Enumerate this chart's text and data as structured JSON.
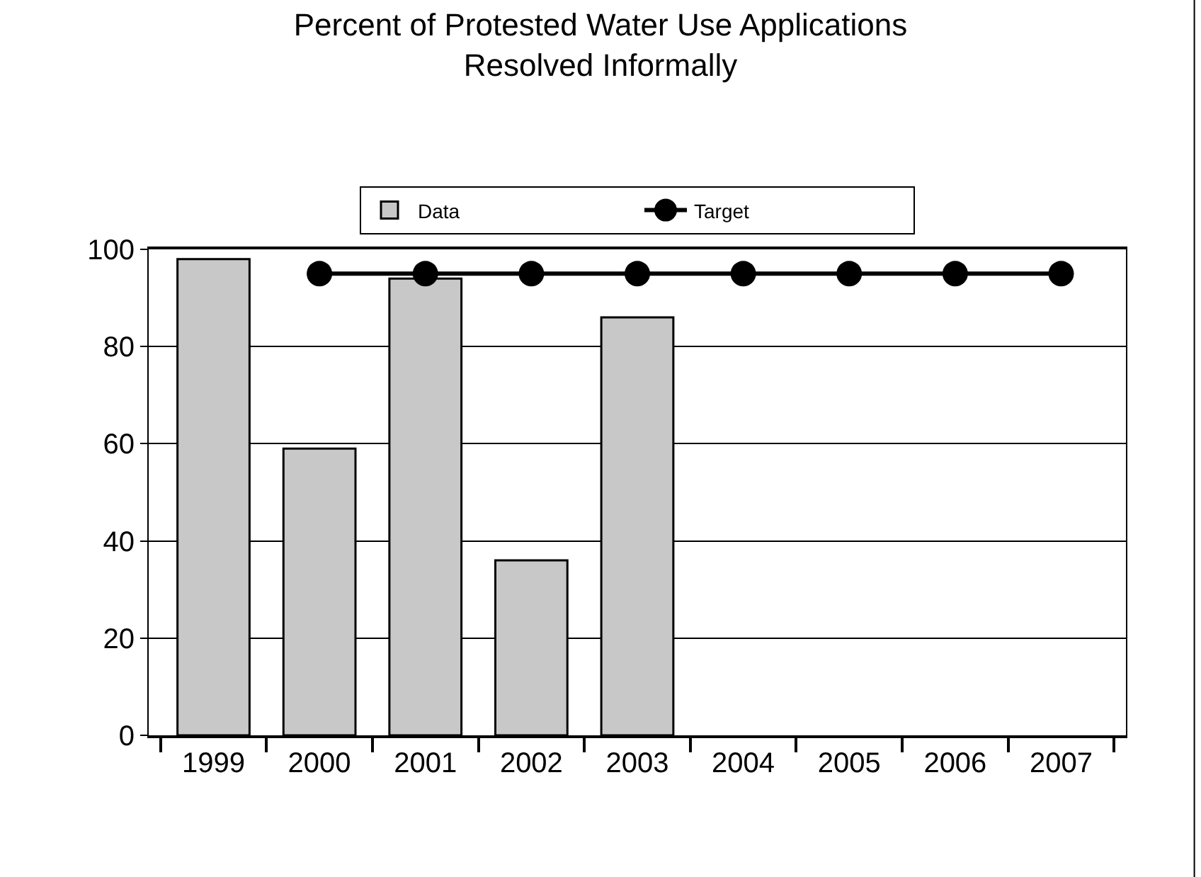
{
  "chart_data": {
    "type": "bar",
    "title": "Percent of Protested Water Use Applications Resolved Informally",
    "categories": [
      "1999",
      "2000",
      "2001",
      "2002",
      "2003",
      "2004",
      "2005",
      "2006",
      "2007"
    ],
    "series": [
      {
        "name": "Data",
        "color": "#c8c8c8",
        "values": [
          98,
          59,
          94,
          36,
          86,
          null,
          null,
          null,
          null
        ]
      },
      {
        "name": "Target",
        "type": "line",
        "color": "#000000",
        "marker": "circle",
        "values": [
          null,
          95,
          95,
          95,
          95,
          95,
          95,
          95,
          95
        ]
      }
    ],
    "ylim": [
      0,
      100
    ],
    "yticks": [
      0,
      20,
      40,
      60,
      80,
      100
    ],
    "grid": "y",
    "legend": "top"
  }
}
